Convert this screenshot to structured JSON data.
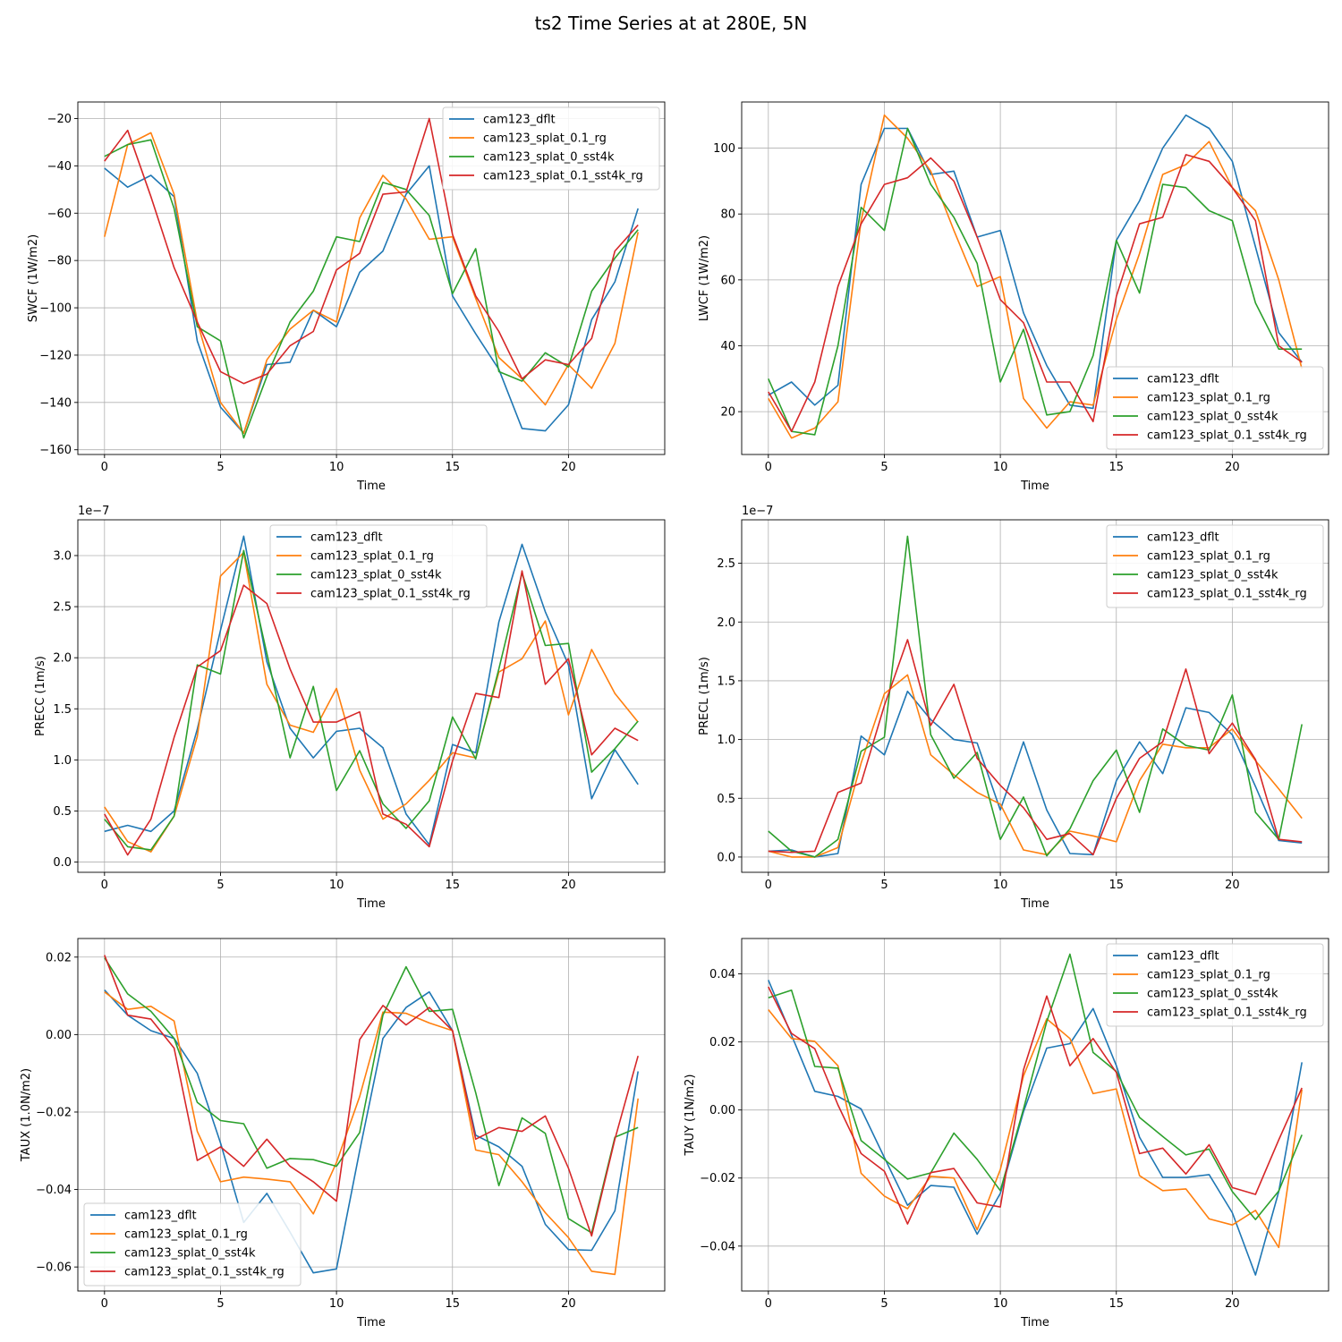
{
  "figure_title": "ts2 Time Series at at 280E, 5N",
  "colors": {
    "cam123_dflt": "#1f77b4",
    "cam123_splat_0.1_rg": "#ff7f0e",
    "cam123_splat_0_sst4k": "#2ca02c",
    "cam123_splat_0.1_sst4k_rg": "#d62728"
  },
  "chart_data": [
    {
      "type": "line",
      "title": "",
      "xlabel": "Time",
      "ylabel": "SWCF (1W/m2)",
      "xlim": [
        -1.15,
        24.15
      ],
      "ylim": [
        -162,
        -13
      ],
      "xticks": [
        0,
        5,
        10,
        15,
        20
      ],
      "xtick_labels": [
        "0",
        "5",
        "10",
        "15",
        "20"
      ],
      "yticks": [
        -160,
        -140,
        -120,
        -100,
        -80,
        -60,
        -40,
        -20
      ],
      "ytick_labels": [
        "−160",
        "−140",
        "−120",
        "−100",
        "−80",
        "−60",
        "−40",
        "−20"
      ],
      "offset_label": "",
      "legend_loc": "upper-right",
      "grid": true,
      "x": [
        0,
        1,
        2,
        3,
        4,
        5,
        6,
        7,
        8,
        9,
        10,
        11,
        12,
        13,
        14,
        15,
        16,
        17,
        18,
        19,
        20,
        21,
        22,
        23
      ],
      "series": [
        {
          "name": "cam123_dflt",
          "values": [
            -41,
            -49,
            -44,
            -53,
            -114,
            -142,
            -153,
            -124,
            -123,
            -101,
            -108,
            -85,
            -76,
            -52,
            -40,
            -95,
            -111,
            -126,
            -151,
            -152,
            -141,
            -105,
            -89,
            -58
          ]
        },
        {
          "name": "cam123_splat_0.1_rg",
          "values": [
            -70,
            -31,
            -26,
            -52,
            -106,
            -140,
            -153,
            -122,
            -109,
            -101,
            -106,
            -62,
            -44,
            -54,
            -71,
            -70,
            -96,
            -121,
            -130,
            -141,
            -124,
            -134,
            -115,
            -68
          ]
        },
        {
          "name": "cam123_splat_0_sst4k",
          "values": [
            -36,
            -31,
            -29,
            -58,
            -108,
            -114,
            -155,
            -129,
            -106,
            -93,
            -70,
            -72,
            -47,
            -50,
            -61,
            -94,
            -75,
            -127,
            -131,
            -119,
            -125,
            -93,
            -79,
            -67
          ]
        },
        {
          "name": "cam123_splat_0.1_sst4k_rg",
          "values": [
            -38,
            -25,
            -53,
            -83,
            -106,
            -127,
            -132,
            -128,
            -116,
            -110,
            -84,
            -77,
            -52,
            -51,
            -20,
            -69,
            -95,
            -110,
            -130,
            -122,
            -124,
            -113,
            -76,
            -65
          ]
        }
      ]
    },
    {
      "type": "line",
      "title": "",
      "xlabel": "Time",
      "ylabel": "LWCF (1W/m2)",
      "xlim": [
        -1.15,
        24.15
      ],
      "ylim": [
        7,
        114
      ],
      "xticks": [
        0,
        5,
        10,
        15,
        20
      ],
      "xtick_labels": [
        "0",
        "5",
        "10",
        "15",
        "20"
      ],
      "yticks": [
        20,
        40,
        60,
        80,
        100
      ],
      "ytick_labels": [
        "20",
        "40",
        "60",
        "80",
        "100"
      ],
      "offset_label": "",
      "legend_loc": "lower-right",
      "grid": true,
      "x": [
        0,
        1,
        2,
        3,
        4,
        5,
        6,
        7,
        8,
        9,
        10,
        11,
        12,
        13,
        14,
        15,
        16,
        17,
        18,
        19,
        20,
        21,
        22,
        23
      ],
      "series": [
        {
          "name": "cam123_dflt",
          "values": [
            25,
            29,
            22,
            28,
            89,
            106,
            106,
            92,
            93,
            73,
            75,
            50,
            34,
            22,
            21,
            72,
            84,
            100,
            110,
            106,
            96,
            70,
            44,
            35
          ]
        },
        {
          "name": "cam123_splat_0.1_rg",
          "values": [
            24,
            12,
            15,
            23,
            78,
            110,
            103,
            93,
            75,
            58,
            61,
            24,
            15,
            23,
            22,
            48,
            68,
            92,
            95,
            102,
            88,
            81,
            60,
            33
          ]
        },
        {
          "name": "cam123_splat_0_sst4k",
          "values": [
            30,
            14,
            13,
            40,
            82,
            75,
            106,
            89,
            79,
            65,
            29,
            45,
            19,
            20,
            37,
            72,
            56,
            89,
            88,
            81,
            78,
            53,
            39,
            39
          ]
        },
        {
          "name": "cam123_splat_0.1_sst4k_rg",
          "values": [
            26,
            14,
            29,
            58,
            77,
            89,
            91,
            97,
            90,
            73,
            54,
            47,
            29,
            29,
            17,
            55,
            77,
            79,
            98,
            96,
            88,
            78,
            40,
            35
          ]
        }
      ]
    },
    {
      "type": "line",
      "title": "",
      "xlabel": "Time",
      "ylabel": "PRECC (1m/s)",
      "xlim": [
        -1.15,
        24.15
      ],
      "ylim": [
        -0.1,
        3.35
      ],
      "xticks": [
        0,
        5,
        10,
        15,
        20
      ],
      "xtick_labels": [
        "0",
        "5",
        "10",
        "15",
        "20"
      ],
      "yticks": [
        0,
        0.5,
        1,
        1.5,
        2,
        2.5,
        3
      ],
      "ytick_labels": [
        "0.0",
        "0.5",
        "1.0",
        "1.5",
        "2.0",
        "2.5",
        "3.0"
      ],
      "offset_label": "1e−7",
      "legend_loc": "upper-center",
      "grid": true,
      "x": [
        0,
        1,
        2,
        3,
        4,
        5,
        6,
        7,
        8,
        9,
        10,
        11,
        12,
        13,
        14,
        15,
        16,
        17,
        18,
        19,
        20,
        21,
        22,
        23
      ],
      "series": [
        {
          "name": "cam123_dflt",
          "values": [
            0.3,
            0.36,
            0.3,
            0.5,
            1.3,
            2.27,
            3.19,
            1.96,
            1.31,
            1.02,
            1.28,
            1.31,
            1.12,
            0.47,
            0.17,
            1.15,
            1.07,
            2.35,
            3.11,
            2.45,
            1.93,
            0.62,
            1.1,
            0.76
          ]
        },
        {
          "name": "cam123_splat_0.1_rg",
          "values": [
            0.54,
            0.2,
            0.1,
            0.45,
            1.23,
            2.8,
            3.03,
            1.74,
            1.34,
            1.27,
            1.7,
            0.9,
            0.42,
            0.57,
            0.8,
            1.07,
            1.02,
            1.86,
            1.99,
            2.36,
            1.44,
            2.08,
            1.65,
            1.37
          ]
        },
        {
          "name": "cam123_splat_0_sst4k",
          "values": [
            0.42,
            0.15,
            0.12,
            0.45,
            1.93,
            1.84,
            3.05,
            2.04,
            1.02,
            1.72,
            0.7,
            1.09,
            0.57,
            0.33,
            0.6,
            1.42,
            1.01,
            1.89,
            2.83,
            2.12,
            2.14,
            0.88,
            1.11,
            1.38
          ]
        },
        {
          "name": "cam123_splat_0.1_sst4k_rg",
          "values": [
            0.47,
            0.07,
            0.42,
            1.22,
            1.91,
            2.07,
            2.71,
            2.53,
            1.89,
            1.37,
            1.37,
            1.47,
            0.47,
            0.37,
            0.15,
            0.99,
            1.65,
            1.61,
            2.85,
            1.74,
            1.99,
            1.05,
            1.31,
            1.19
          ]
        }
      ]
    },
    {
      "type": "line",
      "title": "",
      "xlabel": "Time",
      "ylabel": "PRECL (1m/s)",
      "xlim": [
        -1.15,
        24.15
      ],
      "ylim": [
        -0.13,
        2.87
      ],
      "xticks": [
        0,
        5,
        10,
        15,
        20
      ],
      "xtick_labels": [
        "0",
        "5",
        "10",
        "15",
        "20"
      ],
      "yticks": [
        0,
        0.5,
        1,
        1.5,
        2,
        2.5
      ],
      "ytick_labels": [
        "0.0",
        "0.5",
        "1.0",
        "1.5",
        "2.0",
        "2.5"
      ],
      "offset_label": "1e−7",
      "legend_loc": "upper-right",
      "grid": true,
      "x": [
        0,
        1,
        2,
        3,
        4,
        5,
        6,
        7,
        8,
        9,
        10,
        11,
        12,
        13,
        14,
        15,
        16,
        17,
        18,
        19,
        20,
        21,
        22,
        23
      ],
      "series": [
        {
          "name": "cam123_dflt",
          "values": [
            0.05,
            0.06,
            0.0,
            0.03,
            1.03,
            0.87,
            1.41,
            1.17,
            1.0,
            0.97,
            0.4,
            0.98,
            0.4,
            0.03,
            0.02,
            0.65,
            0.98,
            0.71,
            1.27,
            1.23,
            1.04,
            0.6,
            0.14,
            0.12
          ]
        },
        {
          "name": "cam123_splat_0.1_rg",
          "values": [
            0.05,
            0.0,
            0.0,
            0.08,
            0.8,
            1.39,
            1.55,
            0.87,
            0.7,
            0.55,
            0.45,
            0.06,
            0.02,
            0.22,
            0.18,
            0.13,
            0.65,
            0.96,
            0.93,
            0.93,
            1.09,
            0.82,
            0.58,
            0.33
          ]
        },
        {
          "name": "cam123_splat_0_sst4k",
          "values": [
            0.22,
            0.05,
            0.0,
            0.15,
            0.9,
            1.02,
            2.73,
            1.04,
            0.67,
            0.89,
            0.15,
            0.51,
            0.01,
            0.24,
            0.65,
            0.91,
            0.38,
            1.09,
            0.95,
            0.91,
            1.38,
            0.38,
            0.15,
            1.13
          ]
        },
        {
          "name": "cam123_splat_0.1_sst4k_rg",
          "values": [
            0.05,
            0.04,
            0.05,
            0.55,
            0.63,
            1.29,
            1.85,
            1.12,
            1.47,
            0.84,
            0.61,
            0.42,
            0.15,
            0.2,
            0.02,
            0.5,
            0.84,
            0.98,
            1.6,
            0.88,
            1.14,
            0.83,
            0.15,
            0.13
          ]
        }
      ]
    },
    {
      "type": "line",
      "title": "",
      "xlabel": "Time",
      "ylabel": "TAUX (1.0N/m2)",
      "xlim": [
        -1.15,
        24.15
      ],
      "ylim": [
        -0.0662,
        0.0248
      ],
      "xticks": [
        0,
        5,
        10,
        15,
        20
      ],
      "xtick_labels": [
        "0",
        "5",
        "10",
        "15",
        "20"
      ],
      "yticks": [
        -0.06,
        -0.04,
        -0.02,
        0,
        0.02
      ],
      "ytick_labels": [
        "−0.06",
        "−0.04",
        "−0.02",
        "0.00",
        "0.02"
      ],
      "offset_label": "",
      "legend_loc": "lower-left",
      "grid": true,
      "x": [
        0,
        1,
        2,
        3,
        4,
        5,
        6,
        7,
        8,
        9,
        10,
        11,
        12,
        13,
        14,
        15,
        16,
        17,
        18,
        19,
        20,
        21,
        22,
        23
      ],
      "series": [
        {
          "name": "cam123_dflt",
          "values": [
            0.0115,
            0.005,
            0.001,
            -0.001,
            -0.01,
            -0.028,
            -0.0485,
            -0.041,
            -0.051,
            -0.0615,
            -0.0605,
            -0.03,
            -0.001,
            0.007,
            0.011,
            0.001,
            -0.026,
            -0.029,
            -0.034,
            -0.049,
            -0.0555,
            -0.0557,
            -0.0455,
            -0.0095
          ]
        },
        {
          "name": "cam123_splat_0.1_rg",
          "values": [
            0.011,
            0.0065,
            0.0073,
            0.0035,
            -0.025,
            -0.038,
            -0.0368,
            -0.0373,
            -0.038,
            -0.0463,
            -0.033,
            -0.016,
            0.0058,
            0.0055,
            0.003,
            0.001,
            -0.0298,
            -0.031,
            -0.038,
            -0.046,
            -0.0524,
            -0.0611,
            -0.0619,
            -0.0165
          ]
        },
        {
          "name": "cam123_splat_0_sst4k",
          "values": [
            0.0198,
            0.0105,
            0.006,
            -0.001,
            -0.0175,
            -0.0222,
            -0.023,
            -0.0345,
            -0.032,
            -0.0323,
            -0.034,
            -0.0253,
            0.005,
            0.0175,
            0.006,
            0.0065,
            -0.015,
            -0.039,
            -0.0215,
            -0.0255,
            -0.0475,
            -0.0512,
            -0.0265,
            -0.024
          ]
        },
        {
          "name": "cam123_splat_0.1_sst4k_rg",
          "values": [
            0.0205,
            0.005,
            0.004,
            -0.0035,
            -0.0325,
            -0.029,
            -0.034,
            -0.027,
            -0.034,
            -0.038,
            -0.043,
            -0.0013,
            0.0075,
            0.0025,
            0.007,
            0.001,
            -0.027,
            -0.024,
            -0.025,
            -0.021,
            -0.0345,
            -0.052,
            -0.027,
            -0.0055
          ]
        }
      ]
    },
    {
      "type": "line",
      "title": "",
      "xlabel": "Time",
      "ylabel": "TAUY (1N/m2)",
      "xlim": [
        -1.15,
        24.15
      ],
      "ylim": [
        -0.0532,
        0.0504
      ],
      "xticks": [
        0,
        5,
        10,
        15,
        20
      ],
      "xtick_labels": [
        "0",
        "5",
        "10",
        "15",
        "20"
      ],
      "yticks": [
        -0.04,
        -0.02,
        0,
        0.02,
        0.04
      ],
      "ytick_labels": [
        "−0.04",
        "−0.02",
        "0.00",
        "0.02",
        "0.04"
      ],
      "offset_label": "",
      "legend_loc": "upper-right",
      "grid": true,
      "x": [
        0,
        1,
        2,
        3,
        4,
        5,
        6,
        7,
        8,
        9,
        10,
        11,
        12,
        13,
        14,
        15,
        16,
        17,
        18,
        19,
        20,
        21,
        22,
        23
      ],
      "series": [
        {
          "name": "cam123_dflt",
          "values": [
            0.0382,
            0.022,
            0.0055,
            0.004,
            0.0003,
            -0.014,
            -0.028,
            -0.0222,
            -0.0227,
            -0.0365,
            -0.0245,
            -0.0005,
            0.0182,
            0.0195,
            0.0298,
            0.013,
            -0.008,
            -0.0198,
            -0.0198,
            -0.019,
            -0.0302,
            -0.0485,
            -0.024,
            0.014
          ]
        },
        {
          "name": "cam123_splat_0.1_rg",
          "values": [
            0.0295,
            0.021,
            0.0202,
            0.013,
            -0.0186,
            -0.0253,
            -0.029,
            -0.0195,
            -0.02,
            -0.0352,
            -0.0175,
            0.01,
            0.0268,
            0.021,
            0.0048,
            0.0062,
            -0.0193,
            -0.0237,
            -0.0232,
            -0.032,
            -0.0338,
            -0.0295,
            -0.0404,
            0.006
          ]
        },
        {
          "name": "cam123_splat_0_sst4k",
          "values": [
            0.033,
            0.0352,
            0.0128,
            0.0123,
            -0.009,
            -0.0145,
            -0.0203,
            -0.0185,
            -0.0068,
            -0.0145,
            -0.0237,
            0.0003,
            0.026,
            0.0458,
            0.0169,
            0.0113,
            -0.0022,
            -0.0078,
            -0.0132,
            -0.0115,
            -0.024,
            -0.0322,
            -0.0238,
            -0.0073
          ]
        },
        {
          "name": "cam123_splat_0.1_sst4k_rg",
          "values": [
            0.0362,
            0.0225,
            0.018,
            0.0015,
            -0.0128,
            -0.018,
            -0.0335,
            -0.0184,
            -0.0172,
            -0.0273,
            -0.0285,
            0.0118,
            0.0335,
            0.013,
            0.021,
            0.011,
            -0.0128,
            -0.0112,
            -0.0188,
            -0.0102,
            -0.0228,
            -0.0248,
            -0.0088,
            0.0065
          ]
        }
      ]
    }
  ]
}
